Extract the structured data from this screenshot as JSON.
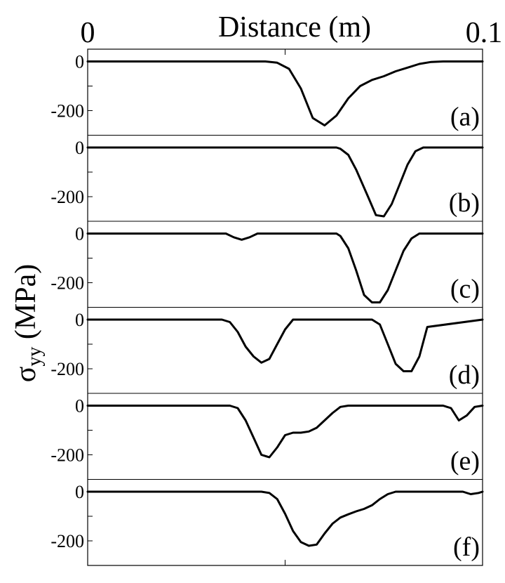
{
  "chart_data": {
    "type": "line",
    "xlabel": "Distance (m)",
    "ylabel_main": "σ",
    "ylabel_sub": "yy",
    "ylabel_unit": " (MPa)",
    "xlim": [
      0,
      0.1
    ],
    "x_tick_labels": [
      "0",
      "0.1"
    ],
    "ylim": [
      -300,
      50
    ],
    "y_tick_labels": [
      "0",
      "-200"
    ],
    "grid": false,
    "panels": [
      {
        "label": "(a)",
        "x": [
          0,
          0.045,
          0.048,
          0.051,
          0.054,
          0.057,
          0.06,
          0.063,
          0.066,
          0.069,
          0.072,
          0.075,
          0.078,
          0.081,
          0.084,
          0.087,
          0.09,
          0.1
        ],
        "y": [
          0,
          0,
          -5,
          -30,
          -110,
          -230,
          -260,
          -220,
          -150,
          -100,
          -75,
          -60,
          -40,
          -25,
          -10,
          -2,
          0,
          0
        ]
      },
      {
        "label": "(b)",
        "x": [
          0,
          0.025,
          0.03,
          0.04,
          0.05,
          0.063,
          0.064,
          0.066,
          0.068,
          0.071,
          0.073,
          0.075,
          0.077,
          0.079,
          0.081,
          0.083,
          0.085,
          0.087,
          0.1
        ],
        "y": [
          0,
          0,
          0,
          0,
          0,
          0,
          -5,
          -30,
          -90,
          -200,
          -275,
          -280,
          -230,
          -150,
          -70,
          -15,
          0,
          0,
          0
        ]
      },
      {
        "label": "(c)",
        "x": [
          0,
          0.02,
          0.035,
          0.037,
          0.039,
          0.041,
          0.043,
          0.063,
          0.064,
          0.066,
          0.068,
          0.07,
          0.072,
          0.074,
          0.076,
          0.078,
          0.08,
          0.082,
          0.084,
          0.1
        ],
        "y": [
          0,
          0,
          0,
          -15,
          -25,
          -15,
          0,
          0,
          -10,
          -60,
          -150,
          -250,
          -280,
          -280,
          -230,
          -150,
          -70,
          -20,
          0,
          0
        ]
      },
      {
        "label": "(d)",
        "x": [
          0,
          0.034,
          0.036,
          0.038,
          0.04,
          0.042,
          0.044,
          0.046,
          0.048,
          0.05,
          0.052,
          0.072,
          0.074,
          0.076,
          0.078,
          0.08,
          0.082,
          0.084,
          0.086,
          0.1
        ],
        "y": [
          0,
          0,
          -10,
          -50,
          -110,
          -150,
          -175,
          -160,
          -100,
          -40,
          0,
          0,
          -20,
          -100,
          -180,
          -210,
          -210,
          -150,
          -30,
          0
        ]
      },
      {
        "label": "(e)",
        "x": [
          0,
          0.036,
          0.038,
          0.04,
          0.042,
          0.044,
          0.046,
          0.048,
          0.05,
          0.052,
          0.054,
          0.056,
          0.058,
          0.06,
          0.062,
          0.064,
          0.066,
          0.068,
          0.07,
          0.072,
          0.09,
          0.092,
          0.094,
          0.096,
          0.098,
          0.1
        ],
        "y": [
          0,
          0,
          -10,
          -60,
          -130,
          -200,
          -210,
          -170,
          -120,
          -110,
          -110,
          -105,
          -90,
          -60,
          -30,
          -5,
          0,
          0,
          0,
          0,
          0,
          -10,
          -60,
          -40,
          -5,
          0
        ]
      },
      {
        "label": "(f)",
        "x": [
          0,
          0.044,
          0.046,
          0.048,
          0.05,
          0.052,
          0.054,
          0.056,
          0.058,
          0.06,
          0.062,
          0.064,
          0.066,
          0.068,
          0.07,
          0.072,
          0.074,
          0.076,
          0.078,
          0.08,
          0.095,
          0.097,
          0.099,
          0.1
        ],
        "y": [
          0,
          0,
          -5,
          -30,
          -90,
          -160,
          -205,
          -220,
          -215,
          -170,
          -130,
          -105,
          -92,
          -80,
          -70,
          -55,
          -30,
          -10,
          0,
          0,
          0,
          -10,
          -5,
          0
        ]
      }
    ]
  }
}
